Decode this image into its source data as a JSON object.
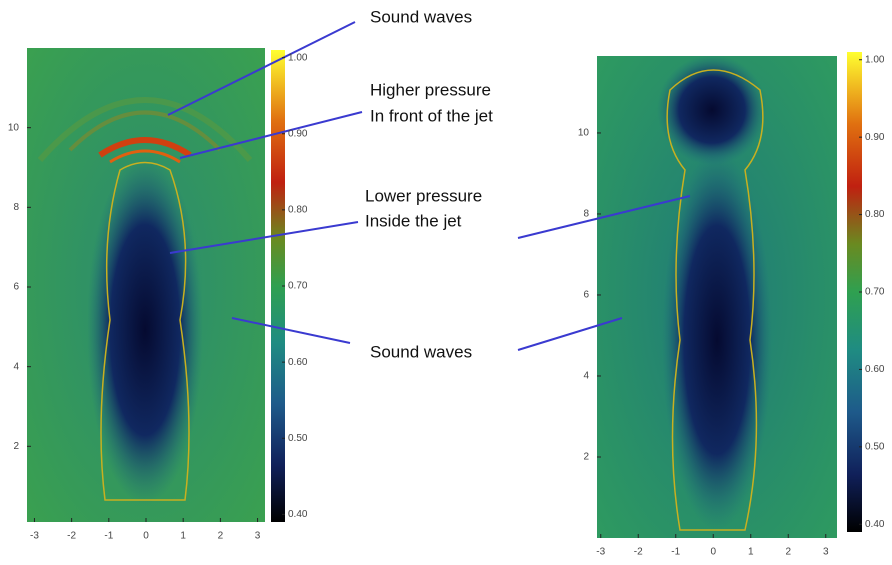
{
  "annotations": [
    {
      "lines": [
        "Sound waves"
      ]
    },
    {
      "lines": [
        "Higher pressure",
        "In front of the jet"
      ]
    },
    {
      "lines": [
        "Lower pressure",
        "Inside the jet"
      ]
    },
    {
      "lines": [
        "Sound waves"
      ]
    }
  ],
  "chart_data": [
    {
      "type": "image",
      "xlim": [
        -3.2,
        3.2
      ],
      "ylim": [
        0.1,
        12
      ],
      "xticks": [
        -3,
        -2,
        -1,
        0,
        1,
        2,
        3
      ],
      "yticks": [
        2,
        4,
        6,
        8,
        10
      ],
      "clim": [
        0.39,
        1.01
      ],
      "cticks": [
        {
          "value": 0.4,
          "label": "0.40"
        },
        {
          "value": 0.5,
          "label": "0.50"
        },
        {
          "value": 0.6,
          "label": "0.60"
        },
        {
          "value": 0.7,
          "label": "0.70"
        },
        {
          "value": 0.8,
          "label": "0.80"
        },
        {
          "value": 0.9,
          "label": "0.90"
        },
        {
          "value": 1,
          "label": "1.00"
        }
      ]
    },
    {
      "type": "image",
      "xlim": [
        -3.1,
        3.3
      ],
      "ylim": [
        0,
        11.9
      ],
      "xticks": [
        -3,
        -2,
        -1,
        0,
        1,
        2,
        3
      ],
      "yticks": [
        2,
        4,
        6,
        8,
        10
      ],
      "clim": [
        0.39,
        1.01
      ],
      "cticks": [
        {
          "value": 0.4,
          "label": "0.40"
        },
        {
          "value": 0.5,
          "label": "0.50"
        },
        {
          "value": 0.6,
          "label": "0.60"
        },
        {
          "value": 0.7,
          "label": "0.70"
        },
        {
          "value": 0.8,
          "label": "0.80"
        },
        {
          "value": 0.9,
          "label": "0.90"
        },
        {
          "value": 1,
          "label": "1.00"
        }
      ]
    }
  ]
}
